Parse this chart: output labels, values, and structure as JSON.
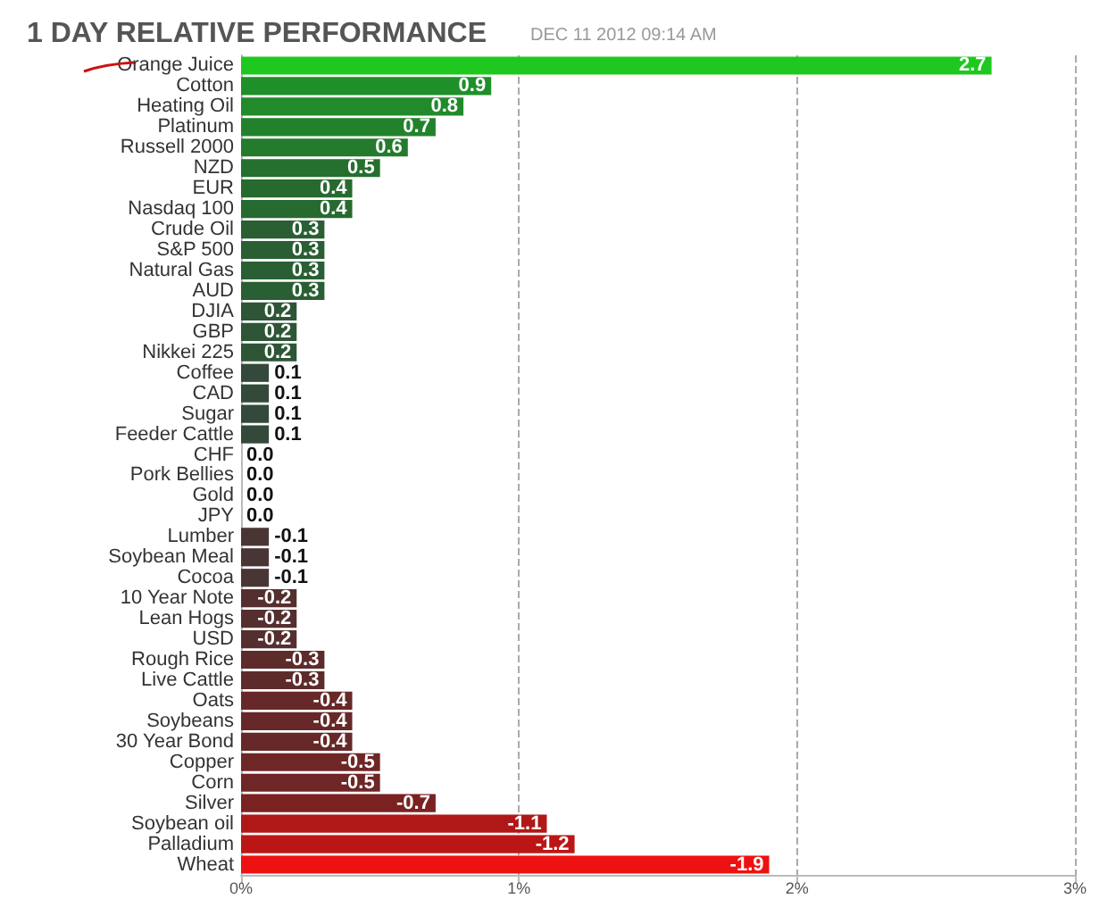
{
  "chart_data": {
    "type": "bar",
    "orientation": "horizontal",
    "title": "1 DAY RELATIVE PERFORMANCE",
    "subtitle": "DEC 11 2012 09:14 AM",
    "categories": [
      "Orange Juice",
      "Cotton",
      "Heating Oil",
      "Platinum",
      "Russell 2000",
      "NZD",
      "EUR",
      "Nasdaq 100",
      "Crude Oil",
      "S&P 500",
      "Natural Gas",
      "AUD",
      "DJIA",
      "GBP",
      "Nikkei 225",
      "Coffee",
      "CAD",
      "Sugar",
      "Feeder Cattle",
      "CHF",
      "Pork Bellies",
      "Gold",
      "JPY",
      "Lumber",
      "Soybean Meal",
      "Cocoa",
      "10 Year Note",
      "Lean Hogs",
      "USD",
      "Rough Rice",
      "Live Cattle",
      "Oats",
      "Soybeans",
      "30 Year Bond",
      "Copper",
      "Corn",
      "Silver",
      "Soybean oil",
      "Palladium",
      "Wheat"
    ],
    "values": [
      2.7,
      0.9,
      0.8,
      0.7,
      0.6,
      0.5,
      0.4,
      0.4,
      0.3,
      0.3,
      0.3,
      0.3,
      0.2,
      0.2,
      0.2,
      0.1,
      0.1,
      0.1,
      0.1,
      0.0,
      0.0,
      0.0,
      0.0,
      -0.1,
      -0.1,
      -0.1,
      -0.2,
      -0.2,
      -0.2,
      -0.3,
      -0.3,
      -0.4,
      -0.4,
      -0.4,
      -0.5,
      -0.5,
      -0.7,
      -1.1,
      -1.2,
      -1.9
    ],
    "value_labels": [
      "2.7",
      "0.9",
      "0.8",
      "0.7",
      "0.6",
      "0.5",
      "0.4",
      "0.4",
      "0.3",
      "0.3",
      "0.3",
      "0.3",
      "0.2",
      "0.2",
      "0.2",
      "0.1",
      "0.1",
      "0.1",
      "0.1",
      "0.0",
      "0.0",
      "0.0",
      "0.0",
      "-0.1",
      "-0.1",
      "-0.1",
      "-0.2",
      "-0.2",
      "-0.2",
      "-0.3",
      "-0.3",
      "-0.4",
      "-0.4",
      "-0.4",
      "-0.5",
      "-0.5",
      "-0.7",
      "-1.1",
      "-1.2",
      "-1.9"
    ],
    "colors": [
      "#1ec81e",
      "#1f8f2a",
      "#218a2b",
      "#22822c",
      "#247a2d",
      "#25702f",
      "#276a30",
      "#276a30",
      "#2a5f33",
      "#2a5f33",
      "#2a5f33",
      "#2a5f33",
      "#2d5536",
      "#2d5536",
      "#2d5536",
      "#334a3a",
      "#334a3a",
      "#334a3a",
      "#334a3a",
      "#3a3a3a",
      "#3a3a3a",
      "#3a3a3a",
      "#3a3a3a",
      "#4a3535",
      "#4a3535",
      "#4a3535",
      "#552f2f",
      "#552f2f",
      "#552f2f",
      "#5e2b2b",
      "#5e2b2b",
      "#662828",
      "#662828",
      "#662828",
      "#6f2626",
      "#6f2626",
      "#7a2222",
      "#b01818",
      "#bb1616",
      "#ee1111"
    ],
    "xlim": [
      0,
      3
    ],
    "xticks": [
      {
        "value": 0,
        "label": "0%"
      },
      {
        "value": 1,
        "label": "1%"
      },
      {
        "value": 2,
        "label": "2%"
      },
      {
        "value": 3,
        "label": "3%"
      }
    ],
    "base": [
      0,
      0,
      0,
      0,
      0,
      0,
      0,
      0,
      0,
      0,
      0,
      0,
      0,
      0,
      0,
      0,
      0,
      0,
      0,
      null,
      null,
      null,
      null,
      0.1,
      0.1,
      0.1,
      0.2,
      0.2,
      0.2,
      0.3,
      0.3,
      0.4,
      0.4,
      0.4,
      0.5,
      0.5,
      0.7,
      1.1,
      1.2,
      1.9
    ],
    "grid": "x"
  }
}
